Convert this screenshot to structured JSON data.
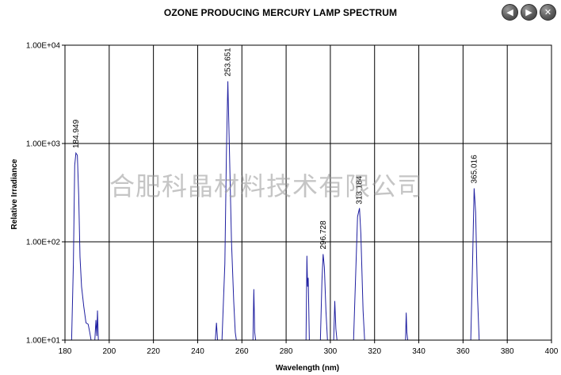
{
  "toolbar": {
    "back_icon": "arrow-left-icon",
    "forward_icon": "arrow-right-icon",
    "close_icon": "close-icon"
  },
  "watermark": "合肥科晶材料技术有限公司",
  "chart_data": {
    "type": "line",
    "title": "OZONE PRODUCING MERCURY LAMP SPECTRUM",
    "xlabel": "Wavelength (nm)",
    "ylabel": "Relative Irradiance",
    "xlim": [
      180,
      400
    ],
    "ylim": [
      10,
      10000
    ],
    "yscale": "log",
    "grid": true,
    "color": "#1f1fa0",
    "x_ticks": [
      "180",
      "200",
      "220",
      "240",
      "260",
      "280",
      "300",
      "320",
      "340",
      "360",
      "380",
      "400"
    ],
    "y_ticks": [
      "1.00E+01",
      "1.00E+02",
      "1.00E+03",
      "1.00E+04"
    ],
    "peak_labels": [
      {
        "text": "184.949",
        "x": 184.949,
        "y": 800
      },
      {
        "text": "253.651",
        "x": 253.651,
        "y": 4300
      },
      {
        "text": "296.728",
        "x": 296.728,
        "y": 75
      },
      {
        "text": "313.184",
        "x": 313.184,
        "y": 215
      },
      {
        "text": "365.016",
        "x": 365.016,
        "y": 350
      }
    ],
    "series": [
      {
        "points": [
          [
            183.0,
            10
          ],
          [
            183.8,
            60
          ],
          [
            184.4,
            600
          ],
          [
            184.949,
            800
          ],
          [
            185.6,
            760
          ],
          [
            186.2,
            300
          ],
          [
            186.8,
            70
          ],
          [
            187.5,
            35
          ],
          [
            188.5,
            22
          ],
          [
            189.5,
            15
          ],
          [
            190.5,
            14.5
          ],
          [
            191.2,
            12
          ],
          [
            191.8,
            10
          ],
          [
            193.5,
            10
          ],
          [
            194.0,
            16
          ],
          [
            194.4,
            11
          ],
          [
            194.7,
            20
          ],
          [
            195.1,
            10
          ],
          [
            248.0,
            10
          ],
          [
            248.5,
            15
          ],
          [
            249.0,
            10
          ],
          [
            251.0,
            10
          ],
          [
            252.3,
            60
          ],
          [
            253.0,
            800
          ],
          [
            253.651,
            4300
          ],
          [
            254.3,
            1000
          ],
          [
            255.3,
            100
          ],
          [
            256.3,
            25
          ],
          [
            257.0,
            12
          ],
          [
            257.5,
            10
          ],
          [
            265.0,
            10
          ],
          [
            265.4,
            33
          ],
          [
            265.8,
            12
          ],
          [
            266.2,
            10
          ],
          [
            289.0,
            10
          ],
          [
            289.4,
            72
          ],
          [
            289.7,
            35
          ],
          [
            290.0,
            43
          ],
          [
            290.5,
            10
          ],
          [
            295.5,
            10
          ],
          [
            296.2,
            40
          ],
          [
            296.728,
            75
          ],
          [
            297.3,
            55
          ],
          [
            298.0,
            20
          ],
          [
            298.7,
            10
          ],
          [
            301.5,
            10
          ],
          [
            302.0,
            25
          ],
          [
            302.5,
            13
          ],
          [
            303.0,
            10
          ],
          [
            310.5,
            10
          ],
          [
            311.5,
            50
          ],
          [
            312.3,
            180
          ],
          [
            313.184,
            220
          ],
          [
            313.8,
            120
          ],
          [
            314.8,
            20
          ],
          [
            315.5,
            10
          ],
          [
            334.0,
            10
          ],
          [
            334.3,
            19
          ],
          [
            334.6,
            12
          ],
          [
            335.0,
            10
          ],
          [
            363.5,
            10
          ],
          [
            364.3,
            60
          ],
          [
            365.016,
            350
          ],
          [
            365.7,
            200
          ],
          [
            366.5,
            30
          ],
          [
            367.3,
            10
          ]
        ]
      }
    ]
  }
}
